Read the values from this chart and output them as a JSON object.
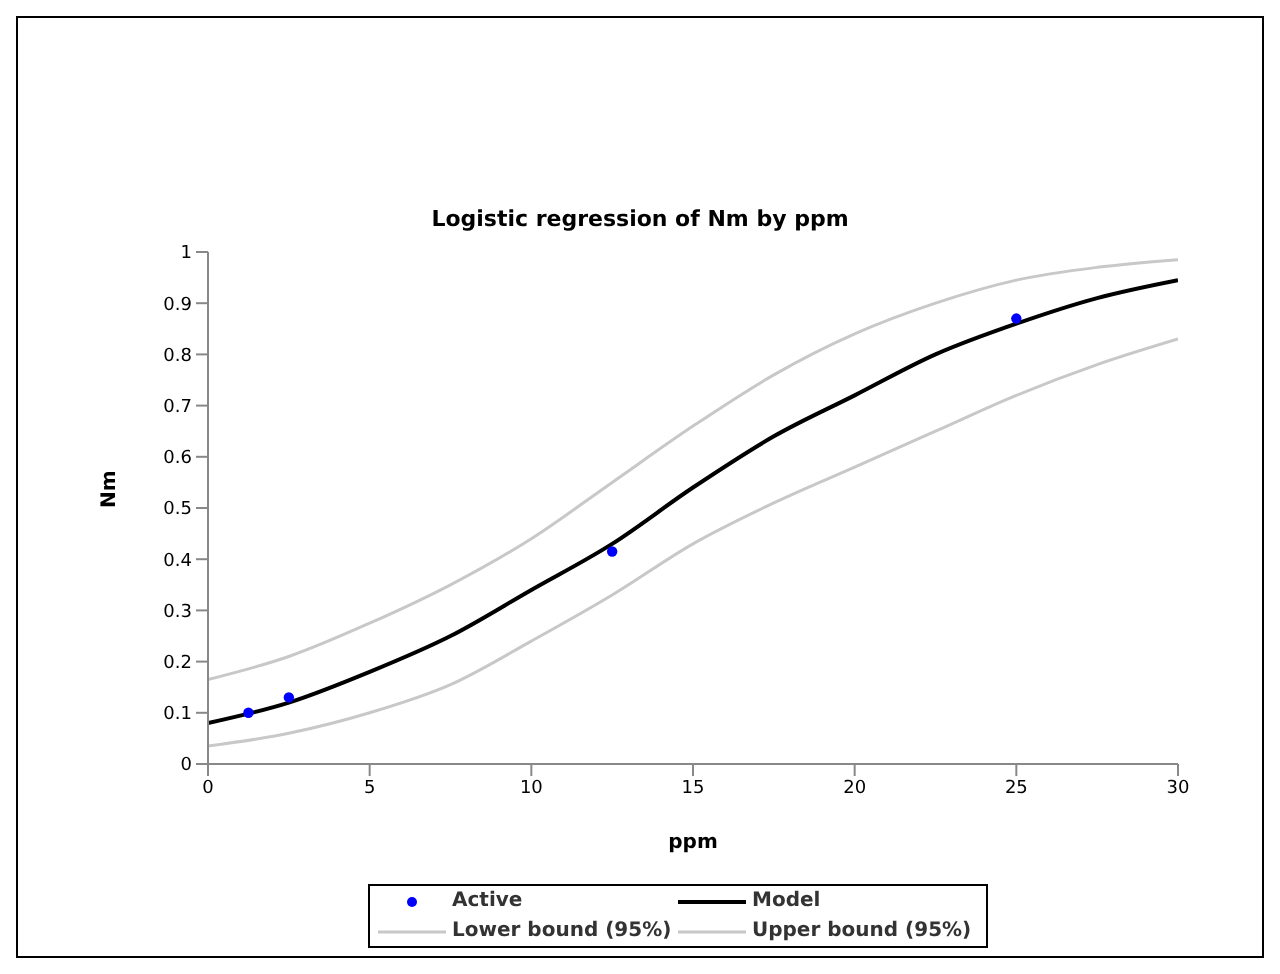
{
  "chart_data": {
    "type": "line",
    "title": "Logistic regression of Nm by ppm",
    "xlabel": "ppm",
    "ylabel": "Nm",
    "xlim": [
      0,
      30
    ],
    "xticks": [
      0,
      5,
      10,
      15,
      20,
      25,
      30
    ],
    "ylim": [
      0,
      1
    ],
    "yticks": [
      0,
      0.1,
      0.2,
      0.3,
      0.4,
      0.5,
      0.6,
      0.7,
      0.8,
      0.9,
      1
    ],
    "grid": false,
    "legend": "bottom",
    "series": [
      {
        "name": "Active",
        "type": "scatter",
        "marker": "circle",
        "color": "#0000ff",
        "x": [
          1.25,
          2.5,
          12.5,
          25
        ],
        "values": [
          0.1,
          0.13,
          0.415,
          0.87
        ]
      },
      {
        "name": "Model",
        "color": "#000000",
        "x": [
          0,
          2.5,
          5,
          7.5,
          10,
          12.5,
          15,
          17.5,
          20,
          22.5,
          25,
          27.5,
          30
        ],
        "values": [
          0.08,
          0.12,
          0.18,
          0.25,
          0.34,
          0.43,
          0.54,
          0.64,
          0.72,
          0.8,
          0.86,
          0.91,
          0.945
        ]
      },
      {
        "name": "Lower bound (95%)",
        "color": "#c8c8c8",
        "x": [
          0,
          2.5,
          5,
          7.5,
          10,
          12.5,
          15,
          17.5,
          20,
          22.5,
          25,
          27.5,
          30
        ],
        "values": [
          0.035,
          0.06,
          0.1,
          0.155,
          0.24,
          0.33,
          0.43,
          0.51,
          0.58,
          0.65,
          0.72,
          0.78,
          0.83
        ]
      },
      {
        "name": "Upper bound (95%)",
        "color": "#c8c8c8",
        "x": [
          0,
          2.5,
          5,
          7.5,
          10,
          12.5,
          15,
          17.5,
          20,
          22.5,
          25,
          27.5,
          30
        ],
        "values": [
          0.165,
          0.21,
          0.275,
          0.35,
          0.44,
          0.55,
          0.66,
          0.76,
          0.84,
          0.9,
          0.945,
          0.97,
          0.985
        ]
      }
    ]
  }
}
